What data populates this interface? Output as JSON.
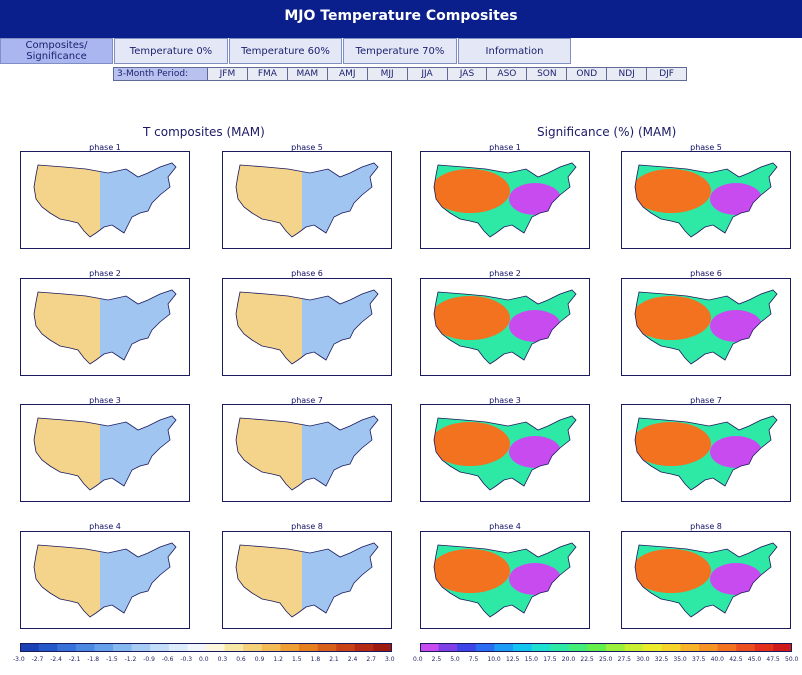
{
  "header": {
    "title": "MJO Temperature Composites"
  },
  "tabs": [
    {
      "label": "Composites/ Significance",
      "active": true
    },
    {
      "label": "Temperature 0%",
      "active": false
    },
    {
      "label": "Temperature 60%",
      "active": false
    },
    {
      "label": "Temperature 70%",
      "active": false
    },
    {
      "label": "Information",
      "active": false
    }
  ],
  "period_bar": {
    "label": "3-Month Period:",
    "periods": [
      "JFM",
      "FMA",
      "MAM",
      "AMJ",
      "MJJ",
      "JJA",
      "JAS",
      "ASO",
      "SON",
      "OND",
      "NDJ",
      "DJF"
    ]
  },
  "sections": {
    "left_title": "T composites (MAM)",
    "right_title": "Significance (%) (MAM)"
  },
  "phases": [
    "phase 1",
    "phase 5",
    "phase 2",
    "phase 6",
    "phase 3",
    "phase 7",
    "phase 4",
    "phase 8"
  ],
  "colorbar_left": {
    "ticks": [
      "-3.0",
      "-2.7",
      "-2.4",
      "-2.1",
      "-1.8",
      "-1.5",
      "-1.2",
      "-0.9",
      "-0.6",
      "-0.3",
      "0.0",
      "0.3",
      "0.6",
      "0.9",
      "1.2",
      "1.5",
      "1.8",
      "2.1",
      "2.4",
      "2.7",
      "3.0"
    ],
    "colors": [
      "#1b3fb4",
      "#2457c8",
      "#3670d8",
      "#4a88e2",
      "#65a0ea",
      "#86b8f0",
      "#a6ccf4",
      "#c2ddf8",
      "#dcecfb",
      "#f2f6fb",
      "#fbf6dc",
      "#f8e7a4",
      "#f5d27a",
      "#f2bb55",
      "#ee9e32",
      "#e6801f",
      "#d9601a",
      "#c94216",
      "#b52a12",
      "#9c1a0f"
    ]
  },
  "colorbar_right": {
    "ticks": [
      "0.0",
      "2.5",
      "5.0",
      "7.5",
      "10.0",
      "12.5",
      "15.0",
      "17.5",
      "20.0",
      "22.5",
      "25.0",
      "27.5",
      "30.0",
      "32.5",
      "35.0",
      "37.5",
      "40.0",
      "42.5",
      "45.0",
      "47.5",
      "50.0"
    ],
    "colors": [
      "#c84bf0",
      "#8040e8",
      "#3d45e8",
      "#2a6cf2",
      "#1d9cf5",
      "#14c4f0",
      "#1de0d0",
      "#2ee8a6",
      "#43ed78",
      "#65ef4a",
      "#9af03a",
      "#c9ef32",
      "#ecec2c",
      "#f6d42a",
      "#f7b428",
      "#f59324",
      "#f27220",
      "#ec4f1e",
      "#e2301d",
      "#cd1b1b"
    ]
  },
  "map_styles": {
    "temp_cool": "#9fc5f0",
    "temp_warm": "#f4d48a",
    "temp_neutral": "#eef4fb",
    "sig_low": "#c84bf0",
    "sig_mid": "#2ee8a6",
    "sig_high": "#f27220"
  }
}
